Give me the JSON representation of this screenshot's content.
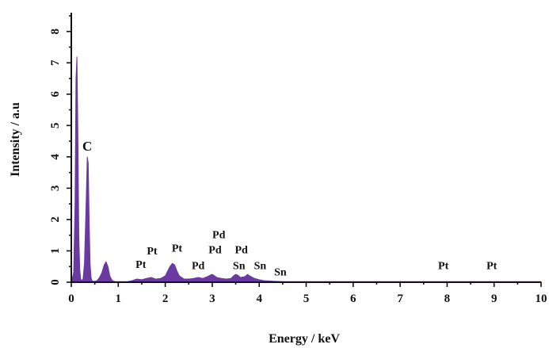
{
  "chart_data": {
    "type": "area",
    "xlabel": "Energy / keV",
    "ylabel": "Intensity / a.u",
    "xlim": [
      0,
      10
    ],
    "ylim": [
      0,
      8.6
    ],
    "xticks": [
      0,
      1,
      2,
      3,
      4,
      5,
      6,
      7,
      8,
      9,
      10
    ],
    "yticks": [
      0,
      1,
      2,
      3,
      4,
      5,
      6,
      7,
      8
    ],
    "grid": false,
    "fill_color": "#6a3aa2",
    "series": [
      {
        "x": [
          0,
          0.05,
          0.08,
          0.1,
          0.12,
          0.14,
          0.16,
          0.18,
          0.2,
          0.22,
          0.25,
          0.28,
          0.31,
          0.34,
          0.36,
          0.38,
          0.4,
          0.42,
          0.44,
          0.46,
          0.5,
          0.55,
          0.6,
          0.65,
          0.7,
          0.74,
          0.78,
          0.82,
          0.86,
          0.9,
          0.95,
          1.0,
          1.1,
          1.2,
          1.3,
          1.35,
          1.4,
          1.5,
          1.6,
          1.7,
          1.8,
          1.9,
          2.0,
          2.05,
          2.1,
          2.15,
          2.2,
          2.25,
          2.3,
          2.35,
          2.4,
          2.5,
          2.6,
          2.7,
          2.8,
          2.9,
          2.95,
          3.0,
          3.05,
          3.1,
          3.2,
          3.3,
          3.4,
          3.45,
          3.5,
          3.55,
          3.6,
          3.7,
          3.75,
          3.8,
          3.9,
          4.0,
          4.1,
          4.2,
          4.3,
          4.5,
          5,
          6,
          7,
          8,
          9,
          10
        ],
        "values": [
          0,
          0.3,
          2.5,
          6.5,
          7.2,
          4.8,
          1.5,
          0.4,
          0.1,
          0.05,
          0.1,
          0.6,
          2.2,
          4.0,
          3.8,
          2.0,
          0.6,
          0.15,
          0.05,
          0.03,
          0.03,
          0.05,
          0.15,
          0.3,
          0.55,
          0.65,
          0.5,
          0.2,
          0.08,
          0.03,
          0.02,
          0.02,
          0.02,
          0.02,
          0.05,
          0.08,
          0.1,
          0.08,
          0.12,
          0.15,
          0.1,
          0.12,
          0.2,
          0.35,
          0.5,
          0.6,
          0.55,
          0.35,
          0.2,
          0.15,
          0.1,
          0.1,
          0.12,
          0.15,
          0.12,
          0.18,
          0.22,
          0.25,
          0.2,
          0.15,
          0.12,
          0.1,
          0.12,
          0.2,
          0.25,
          0.22,
          0.15,
          0.18,
          0.25,
          0.2,
          0.12,
          0.08,
          0.05,
          0.04,
          0.03,
          0.02,
          0.02,
          0.02,
          0.02,
          0.02,
          0.02,
          0.02
        ]
      }
    ],
    "annotations": [
      {
        "text": "C",
        "x": 0.34,
        "y": 4.2,
        "size": "big"
      },
      {
        "text": "Pt",
        "x": 1.48,
        "y": 0.45
      },
      {
        "text": "Pt",
        "x": 1.72,
        "y": 0.88
      },
      {
        "text": "Pt",
        "x": 2.25,
        "y": 0.98
      },
      {
        "text": "Pd",
        "x": 2.7,
        "y": 0.42
      },
      {
        "text": "Pd",
        "x": 3.14,
        "y": 1.4
      },
      {
        "text": "Pd",
        "x": 3.06,
        "y": 0.92
      },
      {
        "text": "Pd",
        "x": 3.62,
        "y": 0.92
      },
      {
        "text": "Sn",
        "x": 3.57,
        "y": 0.42
      },
      {
        "text": "Sn",
        "x": 4.02,
        "y": 0.42
      },
      {
        "text": "Sn",
        "x": 4.45,
        "y": 0.22
      },
      {
        "text": "Pt",
        "x": 7.92,
        "y": 0.42
      },
      {
        "text": "Pt",
        "x": 8.95,
        "y": 0.42
      }
    ]
  }
}
